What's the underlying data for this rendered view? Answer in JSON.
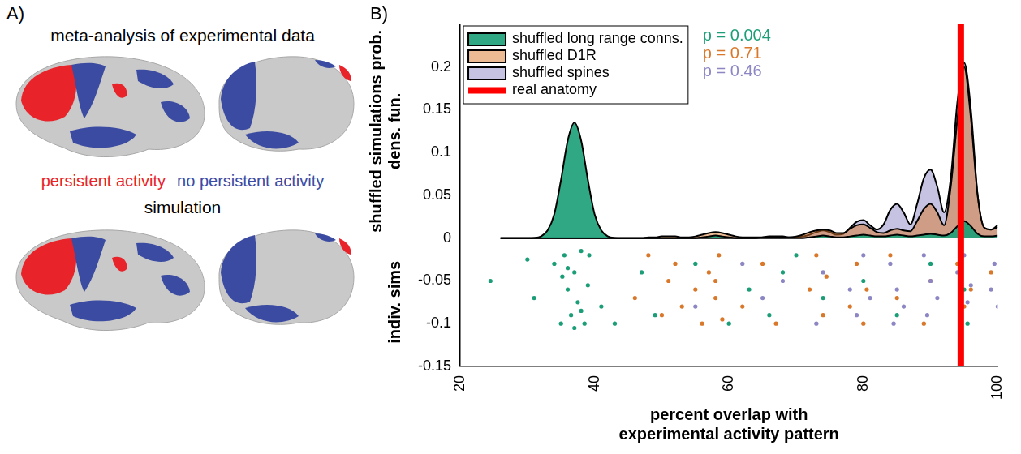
{
  "panel_a": {
    "letter": "A)",
    "titles": [
      "meta-analysis of experimental data",
      "simulation"
    ],
    "legend": [
      {
        "text": "persistent activity",
        "color": "#e8232a"
      },
      {
        "text": "no persistent activity",
        "color": "#3b4ba2"
      }
    ]
  },
  "chart_data": {
    "panel": "B)",
    "type": "line",
    "x_label": [
      "percent overlap with",
      "experimental activity pattern"
    ],
    "y_label_upper": "shuffled simulations prob. dens. fun.",
    "y_label_lower": "indiv. sims",
    "xlim": [
      20,
      100
    ],
    "xticks": [
      20,
      40,
      60,
      80,
      100
    ],
    "ylim": [
      -0.15,
      0.25
    ],
    "yticks": [
      -0.15,
      -0.1,
      -0.05,
      0,
      0.05,
      0.1,
      0.15,
      0.2
    ],
    "grid": false,
    "legend": "upper left",
    "x": [
      26,
      27,
      28,
      29,
      30,
      31,
      32,
      33,
      34,
      35,
      36,
      37,
      38,
      39,
      40,
      41,
      42,
      43,
      44,
      45,
      46,
      47,
      48,
      49,
      50,
      51,
      52,
      53,
      54,
      55,
      56,
      57,
      58,
      59,
      60,
      61,
      62,
      63,
      64,
      65,
      66,
      67,
      68,
      69,
      70,
      71,
      72,
      73,
      74,
      75,
      76,
      77,
      78,
      79,
      80,
      81,
      82,
      83,
      84,
      85,
      86,
      87,
      88,
      89,
      90,
      91,
      92,
      93,
      94,
      95,
      96,
      97,
      98,
      99,
      100
    ],
    "series": [
      {
        "name": "shuffled long range conns.",
        "color": "#1b9e77",
        "annotation": "p = 0.004",
        "values": [
          0,
          0,
          0,
          0,
          0,
          0.0003,
          0.002,
          0.009,
          0.028,
          0.068,
          0.114,
          0.135,
          0.114,
          0.068,
          0.028,
          0.009,
          0.002,
          0.0003,
          0,
          0,
          0,
          0,
          0,
          0,
          0,
          0,
          0,
          0,
          0,
          0,
          0.001,
          0.002,
          0.003,
          0.002,
          0.001,
          0,
          0,
          0,
          0,
          0,
          0,
          0,
          0,
          0,
          0,
          0,
          0.001,
          0.002,
          0.003,
          0.002,
          0.001,
          0.001,
          0.002,
          0.003,
          0.004,
          0.003,
          0.002,
          0.002,
          0.003,
          0.004,
          0.003,
          0.002,
          0.003,
          0.004,
          0.005,
          0.004,
          0.003,
          0.006,
          0.014,
          0.02,
          0.014,
          0.005,
          0.002,
          0.002,
          0.003
        ],
        "points": [
          [
            24.5,
            -0.05
          ],
          [
            30,
            -0.025
          ],
          [
            31,
            -0.07
          ],
          [
            34,
            -0.03
          ],
          [
            35,
            -0.1
          ],
          [
            35.5,
            -0.02
          ],
          [
            36,
            -0.06
          ],
          [
            36.5,
            -0.09
          ],
          [
            37,
            -0.04
          ],
          [
            37.5,
            -0.075
          ],
          [
            38,
            -0.015
          ],
          [
            38.5,
            -0.1
          ],
          [
            39,
            -0.055
          ],
          [
            36,
            -0.035
          ],
          [
            37,
            -0.105
          ],
          [
            38,
            -0.085
          ],
          [
            35.2,
            -0.045
          ],
          [
            39.2,
            -0.02
          ],
          [
            41,
            -0.08
          ],
          [
            43,
            -0.1
          ],
          [
            47,
            -0.04
          ],
          [
            49,
            -0.09
          ],
          [
            55,
            -0.03
          ],
          [
            60,
            -0.1
          ],
          [
            63,
            -0.06
          ],
          [
            66,
            -0.09
          ],
          [
            68,
            -0.04
          ],
          [
            70,
            -0.02
          ],
          [
            74,
            -0.07
          ],
          [
            80,
            -0.05
          ],
          [
            85,
            -0.09
          ],
          [
            90,
            -0.03
          ],
          [
            95,
            -0.06
          ],
          [
            95.5,
            -0.1
          ]
        ]
      },
      {
        "name": "shuffled D1R",
        "color": "#d9782a",
        "annotation": "p = 0.71",
        "values": [
          0,
          0,
          0,
          0,
          0,
          0,
          0,
          0,
          0,
          0,
          0,
          0,
          0,
          0,
          0,
          0,
          0,
          0,
          0,
          0,
          0,
          0,
          0.001,
          0.001,
          0.002,
          0.002,
          0.002,
          0.001,
          0.001,
          0.002,
          0.004,
          0.006,
          0.007,
          0.006,
          0.004,
          0.002,
          0.001,
          0.001,
          0.001,
          0.001,
          0.001,
          0.001,
          0.001,
          0.001,
          0.002,
          0.004,
          0.007,
          0.009,
          0.01,
          0.009,
          0.006,
          0.006,
          0.011,
          0.015,
          0.016,
          0.012,
          0.007,
          0.006,
          0.009,
          0.011,
          0.009,
          0.008,
          0.02,
          0.034,
          0.04,
          0.03,
          0.015,
          0.06,
          0.14,
          0.2,
          0.14,
          0.05,
          0.012,
          0.01,
          0.013
        ],
        "points": [
          [
            46,
            -0.07
          ],
          [
            48,
            -0.02
          ],
          [
            50,
            -0.09
          ],
          [
            51,
            -0.05
          ],
          [
            52,
            -0.03
          ],
          [
            53,
            -0.08
          ],
          [
            55,
            -0.06
          ],
          [
            56,
            -0.1
          ],
          [
            57,
            -0.04
          ],
          [
            58,
            -0.07
          ],
          [
            58.5,
            -0.02
          ],
          [
            59,
            -0.095
          ],
          [
            58,
            -0.05
          ],
          [
            62,
            -0.08
          ],
          [
            65,
            -0.03
          ],
          [
            67,
            -0.1
          ],
          [
            72,
            -0.06
          ],
          [
            73,
            -0.02
          ],
          [
            74,
            -0.09
          ],
          [
            74.5,
            -0.045
          ],
          [
            78,
            -0.08
          ],
          [
            79,
            -0.03
          ],
          [
            80,
            -0.1
          ],
          [
            80.5,
            -0.06
          ],
          [
            84,
            -0.02
          ],
          [
            85,
            -0.07
          ],
          [
            89,
            -0.1
          ],
          [
            90,
            -0.05
          ],
          [
            94,
            -0.03
          ],
          [
            95,
            -0.08
          ],
          [
            96,
            -0.06
          ],
          [
            99,
            -0.04
          ]
        ]
      },
      {
        "name": "shuffled spines",
        "color": "#8c87c4",
        "annotation": "p = 0.46",
        "values": [
          0,
          0,
          0,
          0,
          0,
          0,
          0,
          0,
          0,
          0,
          0,
          0,
          0,
          0,
          0,
          0,
          0,
          0,
          0,
          0,
          0,
          0,
          0,
          0,
          0,
          0,
          0,
          0,
          0,
          0,
          0,
          0,
          0,
          0,
          0,
          0,
          0,
          0,
          0,
          0.001,
          0.002,
          0.002,
          0.002,
          0.001,
          0.001,
          0.002,
          0.004,
          0.007,
          0.009,
          0.007,
          0.004,
          0.005,
          0.012,
          0.019,
          0.021,
          0.015,
          0.01,
          0.016,
          0.033,
          0.04,
          0.03,
          0.016,
          0.04,
          0.07,
          0.08,
          0.06,
          0.03,
          0.07,
          0.16,
          0.205,
          0.15,
          0.05,
          0.012,
          0.01,
          0.015
        ],
        "points": [
          [
            55,
            -0.08
          ],
          [
            62,
            -0.03
          ],
          [
            65,
            -0.07
          ],
          [
            68,
            -0.05
          ],
          [
            73,
            -0.1
          ],
          [
            74,
            -0.04
          ],
          [
            78,
            -0.06
          ],
          [
            79,
            -0.09
          ],
          [
            80,
            -0.02
          ],
          [
            81,
            -0.07
          ],
          [
            84,
            -0.03
          ],
          [
            84.5,
            -0.1
          ],
          [
            85,
            -0.06
          ],
          [
            86,
            -0.08
          ],
          [
            89,
            -0.02
          ],
          [
            89.5,
            -0.09
          ],
          [
            90,
            -0.05
          ],
          [
            91,
            -0.07
          ],
          [
            94,
            -0.04
          ],
          [
            94.5,
            -0.1
          ],
          [
            95,
            -0.02
          ],
          [
            95.5,
            -0.075
          ],
          [
            96,
            -0.055
          ],
          [
            99.5,
            -0.03
          ],
          [
            100,
            -0.08
          ],
          [
            99,
            -0.06
          ]
        ]
      }
    ],
    "reference_line": {
      "name": "real anatomy",
      "color": "#ff0000",
      "x": 94.5
    }
  }
}
